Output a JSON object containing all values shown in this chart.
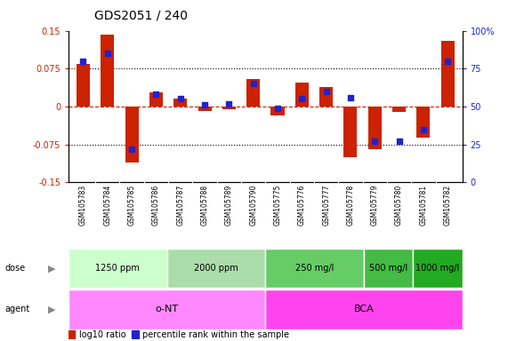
{
  "title": "GDS2051 / 240",
  "samples": [
    "GSM105783",
    "GSM105784",
    "GSM105785",
    "GSM105786",
    "GSM105787",
    "GSM105788",
    "GSM105789",
    "GSM105790",
    "GSM105775",
    "GSM105776",
    "GSM105777",
    "GSM105778",
    "GSM105779",
    "GSM105780",
    "GSM105781",
    "GSM105782"
  ],
  "log10_ratio": [
    0.085,
    0.142,
    -0.11,
    0.028,
    0.015,
    -0.008,
    -0.005,
    0.055,
    -0.018,
    0.048,
    0.038,
    -0.1,
    -0.085,
    -0.01,
    -0.062,
    0.13
  ],
  "percentile_rank": [
    80,
    85,
    22,
    58,
    55,
    51,
    52,
    65,
    49,
    55,
    60,
    56,
    27,
    27,
    35,
    80
  ],
  "dose_groups": [
    {
      "label": "1250 ppm",
      "start": 0,
      "end": 4
    },
    {
      "label": "2000 ppm",
      "start": 4,
      "end": 8
    },
    {
      "label": "250 mg/l",
      "start": 8,
      "end": 12
    },
    {
      "label": "500 mg/l",
      "start": 12,
      "end": 14
    },
    {
      "label": "1000 mg/l",
      "start": 14,
      "end": 16
    }
  ],
  "dose_colors": [
    "#ccffcc",
    "#aaddaa",
    "#66cc66",
    "#44bb44",
    "#22aa22"
  ],
  "agent_groups": [
    {
      "label": "o-NT",
      "start": 0,
      "end": 8
    },
    {
      "label": "BCA",
      "start": 8,
      "end": 16
    }
  ],
  "agent_colors": [
    "#ff88ff",
    "#ff44ee"
  ],
  "ylim": [
    -0.15,
    0.15
  ],
  "y_ticks_left": [
    -0.15,
    -0.075,
    0,
    0.075,
    0.15
  ],
  "y_ticks_right": [
    0,
    25,
    50,
    75,
    100
  ],
  "hlines": [
    0.075,
    0,
    -0.075
  ],
  "bar_color": "#cc2200",
  "dot_color": "#2222cc",
  "bar_width": 0.55,
  "dot_size": 15,
  "background_color": "#ffffff",
  "left_tick_color": "#cc2200",
  "right_tick_color": "#2222cc",
  "label_area_color": "#cccccc",
  "title_fontsize": 10,
  "tick_fontsize": 7,
  "sample_fontsize": 5.5,
  "row_label_fontsize": 7,
  "dose_fontsize": 7,
  "agent_fontsize": 8
}
